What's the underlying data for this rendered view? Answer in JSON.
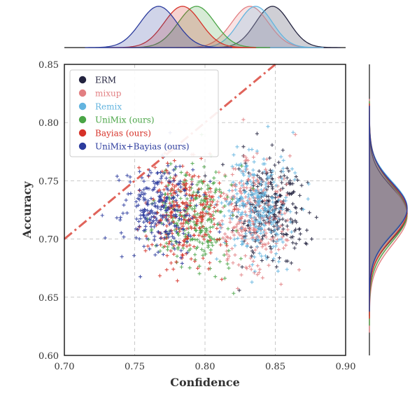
{
  "chart_data": {
    "type": "scatter",
    "xlabel": "Confidence",
    "ylabel": "Accuracy",
    "xlim": [
      0.7,
      0.9
    ],
    "ylim": [
      0.6,
      0.85
    ],
    "x_ticks": [
      "0.70",
      "0.75",
      "0.80",
      "0.85",
      "0.90"
    ],
    "y_ticks": [
      "0.60",
      "0.65",
      "0.70",
      "0.75",
      "0.80",
      "0.85"
    ],
    "grid": true,
    "legend_position": "top-left",
    "marker": "+",
    "reference_line": {
      "style": "dash-dot",
      "color": "#e0635a",
      "from": [
        0.7,
        0.7
      ],
      "to": [
        0.85,
        0.85
      ]
    },
    "marginals": {
      "top": "kde of confidence per method",
      "right": "kde of accuracy per method"
    },
    "series": [
      {
        "name": "ERM",
        "color": "#23233f",
        "center": [
          0.848,
          0.722
        ],
        "spread": [
          0.012,
          0.022
        ],
        "n": 260
      },
      {
        "name": "mixup",
        "color": "#e27f82",
        "center": [
          0.832,
          0.72
        ],
        "spread": [
          0.013,
          0.025
        ],
        "n": 260
      },
      {
        "name": "Remix",
        "color": "#63b4df",
        "center": [
          0.836,
          0.727
        ],
        "spread": [
          0.012,
          0.022
        ],
        "n": 260
      },
      {
        "name": "UniMix (ours)",
        "color": "#4aa546",
        "center": [
          0.794,
          0.722
        ],
        "spread": [
          0.013,
          0.024
        ],
        "n": 260
      },
      {
        "name": "Bayias (ours)",
        "color": "#d63229",
        "center": [
          0.784,
          0.724
        ],
        "spread": [
          0.013,
          0.023
        ],
        "n": 260
      },
      {
        "name": "UniMix+Bayias (ours)",
        "color": "#2b3b9d",
        "center": [
          0.767,
          0.726
        ],
        "spread": [
          0.013,
          0.022
        ],
        "n": 260
      }
    ]
  }
}
